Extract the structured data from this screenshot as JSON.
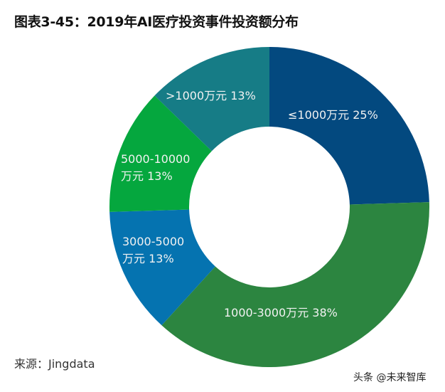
{
  "chart_data": {
    "type": "pie",
    "donut": true,
    "title": "图表3-45：2019年AI医疗投资事件投资额分布",
    "start": "12 o'clock, clockwise",
    "slices": [
      {
        "label": "≤1000万元",
        "value": 25,
        "value_label": "25%",
        "color": "#03497f"
      },
      {
        "label": "1000-3000万元",
        "value": 38,
        "value_label": "38%",
        "color": "#2c8540"
      },
      {
        "label": "3000-5000万元",
        "value": 13,
        "value_label": "13%",
        "color": "#0573b0"
      },
      {
        "label": "5000-10000万元",
        "value": 13,
        "value_label": "13%",
        "color": "#05a73e"
      },
      {
        "label": ">1000万元",
        "value": 13,
        "value_label": "13%",
        "color": "#167c86"
      }
    ]
  },
  "labels": [
    {
      "line1": "≤1000万元  25%",
      "line2": ""
    },
    {
      "line1": "1000-3000万元  38%",
      "line2": ""
    },
    {
      "line1": "3000-5000",
      "line2": "万元  13%"
    },
    {
      "line1": "5000-10000",
      "line2": "万元  13%"
    },
    {
      "line1": ">1000万元  13%",
      "line2": ""
    }
  ],
  "source": "来源：Jingdata",
  "watermark": "头条 @未来智库"
}
